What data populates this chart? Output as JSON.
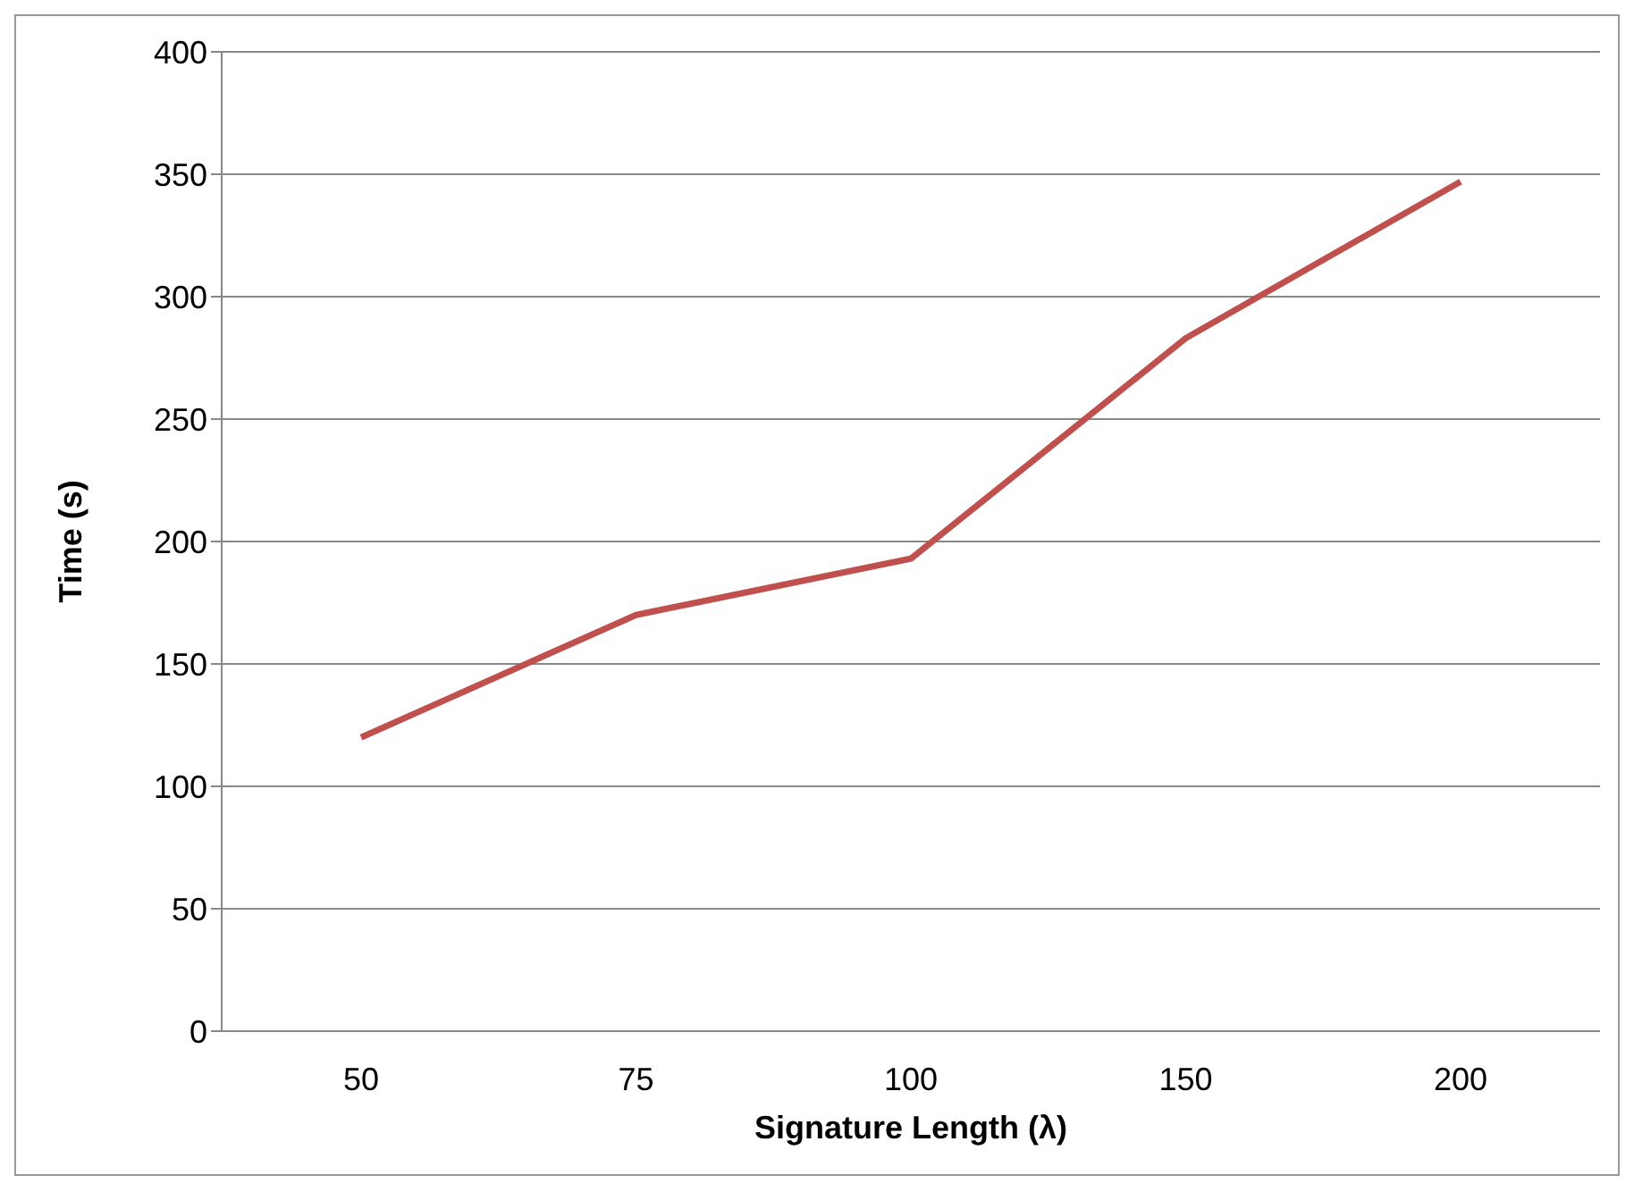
{
  "chart_data": {
    "type": "line",
    "xlabel": "Signature Length (λ)",
    "ylabel": "Time (s)",
    "categories": [
      "50",
      "75",
      "100",
      "150",
      "200"
    ],
    "series": [
      {
        "color": "#c0504d",
        "values": [
          120,
          170,
          193,
          283,
          347
        ]
      }
    ],
    "ylim": [
      0,
      400
    ],
    "yticks": [
      0,
      50,
      100,
      150,
      200,
      250,
      300,
      350,
      400
    ],
    "grid": "y",
    "marker": "none",
    "line_style": "solid"
  }
}
